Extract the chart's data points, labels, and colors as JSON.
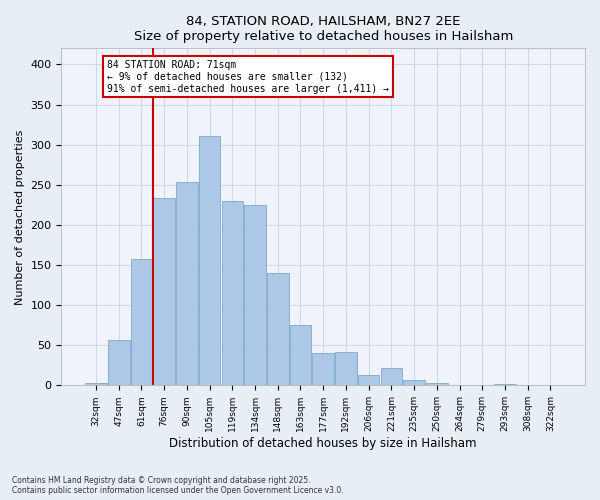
{
  "title": "84, STATION ROAD, HAILSHAM, BN27 2EE",
  "subtitle": "Size of property relative to detached houses in Hailsham",
  "xlabel": "Distribution of detached houses by size in Hailsham",
  "ylabel": "Number of detached properties",
  "categories": [
    "32sqm",
    "47sqm",
    "61sqm",
    "76sqm",
    "90sqm",
    "105sqm",
    "119sqm",
    "134sqm",
    "148sqm",
    "163sqm",
    "177sqm",
    "192sqm",
    "206sqm",
    "221sqm",
    "235sqm",
    "250sqm",
    "264sqm",
    "279sqm",
    "293sqm",
    "308sqm",
    "322sqm"
  ],
  "values": [
    3,
    57,
    157,
    234,
    253,
    311,
    230,
    225,
    140,
    75,
    40,
    42,
    13,
    21,
    7,
    3,
    1,
    0,
    2,
    1,
    0
  ],
  "bar_color": "#adc8e6",
  "bar_edge_color": "#6b9ec8",
  "vline_color": "#cc0000",
  "vline_x": 2.5,
  "annotation_text": "84 STATION ROAD: 71sqm\n← 9% of detached houses are smaller (132)\n91% of semi-detached houses are larger (1,411) →",
  "annotation_box_color": "#ffffff",
  "annotation_box_edge": "#cc0000",
  "footer": "Contains HM Land Registry data © Crown copyright and database right 2025.\nContains public sector information licensed under the Open Government Licence v3.0.",
  "ylim": [
    0,
    420
  ],
  "yticks": [
    0,
    50,
    100,
    150,
    200,
    250,
    300,
    350,
    400
  ],
  "grid_color": "#cdd8ea",
  "bg_color": "#e8eef5",
  "plot_bg_color": "#f0f4fa"
}
